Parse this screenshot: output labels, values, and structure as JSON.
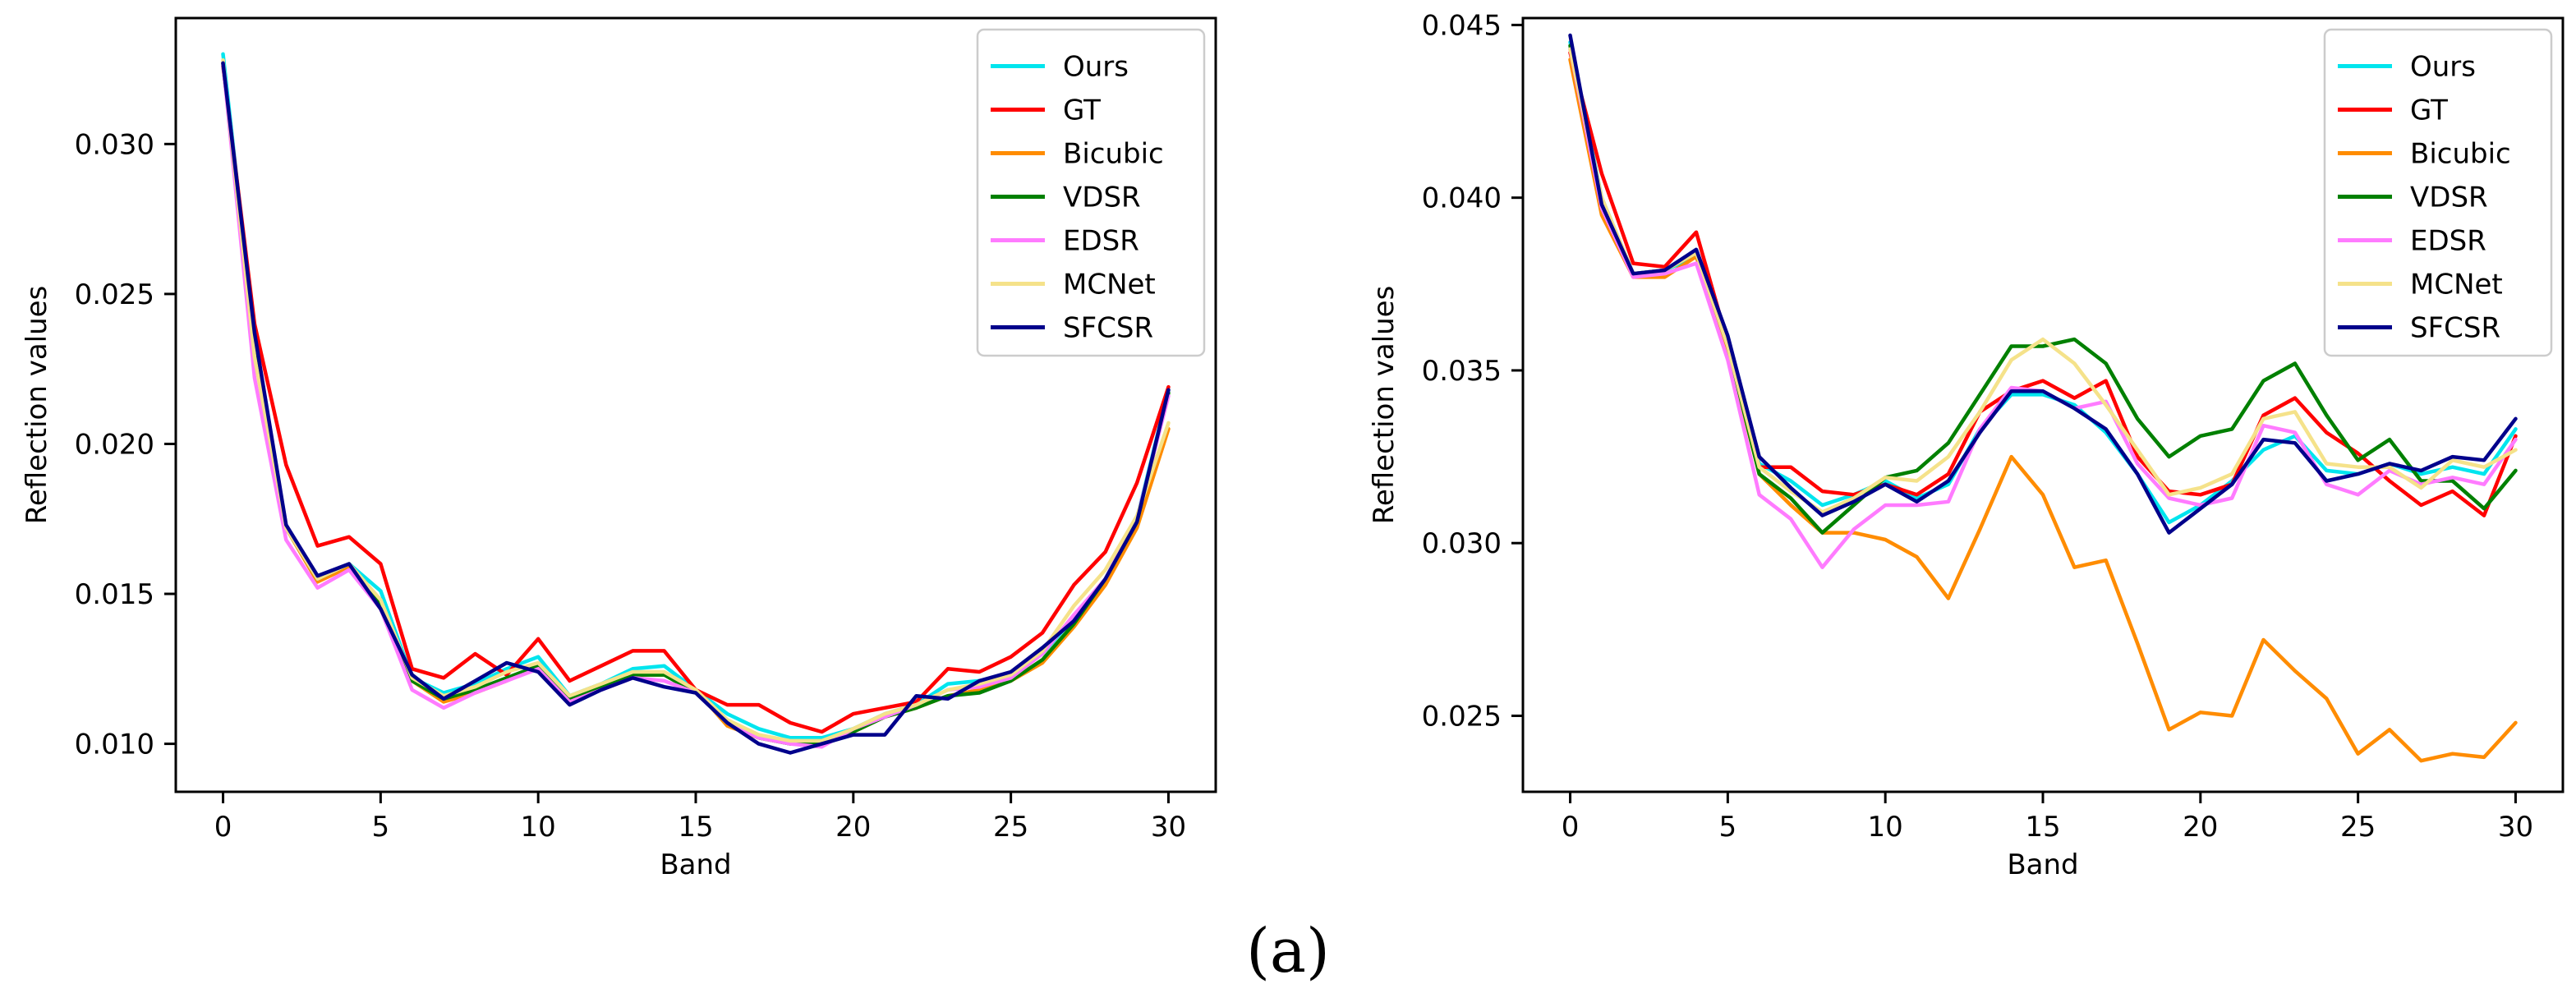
{
  "caption": "(a)",
  "chart_data": [
    {
      "type": "line",
      "title": "",
      "xlabel": "Band",
      "ylabel": "Reflection values",
      "xlim": [
        -1.5,
        31.5
      ],
      "ylim": [
        0.0084,
        0.0342
      ],
      "xticks": [
        0,
        5,
        10,
        15,
        20,
        25,
        30
      ],
      "yticks": [
        0.01,
        0.015,
        0.02,
        0.025,
        0.03
      ],
      "ytick_labels": [
        "0.010",
        "0.015",
        "0.020",
        "0.025",
        "0.030"
      ],
      "legend_position": "top-right",
      "x": [
        0,
        1,
        2,
        3,
        4,
        5,
        6,
        7,
        8,
        9,
        10,
        11,
        12,
        13,
        14,
        15,
        16,
        17,
        18,
        19,
        20,
        21,
        22,
        23,
        24,
        25,
        26,
        27,
        28,
        29,
        30
      ],
      "series": [
        {
          "name": "Ours",
          "color": "#00e5ee",
          "values": [
            0.033,
            0.0235,
            0.0172,
            0.0155,
            0.016,
            0.0151,
            0.0122,
            0.0117,
            0.012,
            0.0125,
            0.0129,
            0.0116,
            0.012,
            0.0125,
            0.0126,
            0.0118,
            0.011,
            0.0105,
            0.0102,
            0.0102,
            0.0105,
            0.011,
            0.0113,
            0.012,
            0.0121,
            0.0123,
            0.013,
            0.0142,
            0.0155,
            0.0175,
            0.0218
          ]
        },
        {
          "name": "GT",
          "color": "#ff0000",
          "values": [
            0.0326,
            0.024,
            0.0193,
            0.0166,
            0.0169,
            0.016,
            0.0125,
            0.0122,
            0.013,
            0.0123,
            0.0135,
            0.0121,
            0.0126,
            0.0131,
            0.0131,
            0.0118,
            0.0113,
            0.0113,
            0.0107,
            0.0104,
            0.011,
            0.0112,
            0.0114,
            0.0125,
            0.0124,
            0.0129,
            0.0137,
            0.0153,
            0.0164,
            0.0187,
            0.0219
          ]
        },
        {
          "name": "Bicubic",
          "color": "#ff8c00",
          "values": [
            0.0327,
            0.023,
            0.0172,
            0.0154,
            0.0159,
            0.0145,
            0.0121,
            0.0114,
            0.0117,
            0.0121,
            0.0126,
            0.0115,
            0.0119,
            0.0123,
            0.0123,
            0.0118,
            0.0106,
            0.0102,
            0.01,
            0.01,
            0.0104,
            0.0109,
            0.0112,
            0.0116,
            0.0118,
            0.0121,
            0.0127,
            0.0139,
            0.0153,
            0.0172,
            0.0205
          ]
        },
        {
          "name": "VDSR",
          "color": "#008000",
          "values": [
            0.0327,
            0.0231,
            0.0172,
            0.0155,
            0.016,
            0.0146,
            0.0121,
            0.0115,
            0.0118,
            0.0122,
            0.0126,
            0.0115,
            0.0119,
            0.0123,
            0.0123,
            0.0117,
            0.0107,
            0.0102,
            0.01,
            0.01,
            0.0104,
            0.0109,
            0.0112,
            0.0116,
            0.0117,
            0.0121,
            0.0128,
            0.014,
            0.0155,
            0.0174,
            0.0217
          ]
        },
        {
          "name": "EDSR",
          "color": "#ff7bff",
          "values": [
            0.0327,
            0.0222,
            0.0168,
            0.0152,
            0.0158,
            0.0145,
            0.0118,
            0.0112,
            0.0117,
            0.0121,
            0.0125,
            0.0114,
            0.0118,
            0.0122,
            0.0121,
            0.0117,
            0.0107,
            0.0102,
            0.01,
            0.0099,
            0.0105,
            0.0109,
            0.0113,
            0.0118,
            0.0119,
            0.0122,
            0.013,
            0.0143,
            0.0155,
            0.0175,
            0.0216
          ]
        },
        {
          "name": "MCNet",
          "color": "#f5e28a",
          "values": [
            0.0328,
            0.0229,
            0.0172,
            0.0155,
            0.016,
            0.0148,
            0.0122,
            0.0116,
            0.0119,
            0.0124,
            0.0127,
            0.0116,
            0.012,
            0.0124,
            0.0124,
            0.0118,
            0.0108,
            0.0103,
            0.0101,
            0.0101,
            0.0105,
            0.011,
            0.0113,
            0.0118,
            0.012,
            0.0123,
            0.0131,
            0.0146,
            0.0158,
            0.0176,
            0.0207
          ]
        },
        {
          "name": "SFCSR",
          "color": "#00008b",
          "values": [
            0.0327,
            0.0237,
            0.0173,
            0.0156,
            0.016,
            0.0145,
            0.0123,
            0.0115,
            0.0121,
            0.0127,
            0.0124,
            0.0113,
            0.0118,
            0.0122,
            0.0119,
            0.0117,
            0.0107,
            0.01,
            0.0097,
            0.01,
            0.0103,
            0.0103,
            0.0116,
            0.0115,
            0.0121,
            0.0124,
            0.0132,
            0.0141,
            0.0155,
            0.0174,
            0.0218
          ]
        }
      ]
    },
    {
      "type": "line",
      "title": "",
      "xlabel": "Band",
      "ylabel": "Reflection values",
      "xlim": [
        -1.5,
        31.5
      ],
      "ylim": [
        0.0228,
        0.0452
      ],
      "xticks": [
        0,
        5,
        10,
        15,
        20,
        25,
        30
      ],
      "yticks": [
        0.025,
        0.03,
        0.035,
        0.04,
        0.045
      ],
      "ytick_labels": [
        "0.025",
        "0.030",
        "0.035",
        "0.040",
        "0.045"
      ],
      "legend_position": "top-right",
      "x": [
        0,
        1,
        2,
        3,
        4,
        5,
        6,
        7,
        8,
        9,
        10,
        11,
        12,
        13,
        14,
        15,
        16,
        17,
        18,
        19,
        20,
        21,
        22,
        23,
        24,
        25,
        26,
        27,
        28,
        29,
        30
      ],
      "series": [
        {
          "name": "Ours",
          "color": "#00e5ee",
          "values": [
            0.0445,
            0.04,
            0.0378,
            0.0379,
            0.0383,
            0.0358,
            0.0323,
            0.0318,
            0.0311,
            0.0314,
            0.0318,
            0.0313,
            0.0317,
            0.0333,
            0.0343,
            0.0343,
            0.034,
            0.0332,
            0.032,
            0.0306,
            0.0311,
            0.0318,
            0.0327,
            0.0331,
            0.0321,
            0.032,
            0.0323,
            0.032,
            0.0322,
            0.032,
            0.0333
          ]
        },
        {
          "name": "GT",
          "color": "#ff0000",
          "values": [
            0.0442,
            0.0407,
            0.0381,
            0.038,
            0.039,
            0.0358,
            0.0322,
            0.0322,
            0.0315,
            0.0314,
            0.0317,
            0.0314,
            0.032,
            0.0338,
            0.0344,
            0.0347,
            0.0342,
            0.0347,
            0.0325,
            0.0315,
            0.0314,
            0.0317,
            0.0337,
            0.0342,
            0.0332,
            0.0326,
            0.0318,
            0.0311,
            0.0315,
            0.0308,
            0.0331
          ]
        },
        {
          "name": "Bicubic",
          "color": "#ff8c00",
          "values": [
            0.044,
            0.0395,
            0.0377,
            0.0377,
            0.0383,
            0.0356,
            0.032,
            0.0311,
            0.0303,
            0.0303,
            0.0301,
            0.0296,
            0.0284,
            0.0304,
            0.0325,
            0.0314,
            0.0293,
            0.0295,
            0.0271,
            0.0246,
            0.0251,
            0.025,
            0.0272,
            0.0263,
            0.0255,
            0.0239,
            0.0246,
            0.0237,
            0.0239,
            0.0238,
            0.0248
          ]
        },
        {
          "name": "VDSR",
          "color": "#008000",
          "values": [
            0.0444,
            0.0398,
            0.0378,
            0.0379,
            0.0384,
            0.0357,
            0.032,
            0.0313,
            0.0303,
            0.0311,
            0.0319,
            0.0321,
            0.0329,
            0.0343,
            0.0357,
            0.0357,
            0.0359,
            0.0352,
            0.0336,
            0.0325,
            0.0331,
            0.0333,
            0.0347,
            0.0352,
            0.0337,
            0.0324,
            0.033,
            0.0318,
            0.0318,
            0.031,
            0.0321
          ]
        },
        {
          "name": "EDSR",
          "color": "#ff7bff",
          "values": [
            0.0443,
            0.0397,
            0.0377,
            0.0378,
            0.0381,
            0.0353,
            0.0314,
            0.0307,
            0.0293,
            0.0304,
            0.0311,
            0.0311,
            0.0312,
            0.0333,
            0.0345,
            0.0344,
            0.0339,
            0.0341,
            0.0323,
            0.0313,
            0.0311,
            0.0313,
            0.0334,
            0.0332,
            0.0317,
            0.0314,
            0.0321,
            0.0317,
            0.0319,
            0.0317,
            0.033
          ]
        },
        {
          "name": "MCNet",
          "color": "#f5e28a",
          "values": [
            0.0443,
            0.04,
            0.0378,
            0.0379,
            0.0384,
            0.0357,
            0.0322,
            0.0315,
            0.0309,
            0.0313,
            0.0319,
            0.0318,
            0.0325,
            0.0338,
            0.0353,
            0.0359,
            0.0352,
            0.034,
            0.0327,
            0.0314,
            0.0316,
            0.032,
            0.0336,
            0.0338,
            0.0323,
            0.0322,
            0.0322,
            0.0316,
            0.0324,
            0.0322,
            0.0327
          ]
        },
        {
          "name": "SFCSR",
          "color": "#00008b",
          "values": [
            0.0447,
            0.0398,
            0.0378,
            0.0379,
            0.0385,
            0.036,
            0.0325,
            0.0316,
            0.0308,
            0.0312,
            0.0317,
            0.0312,
            0.0318,
            0.0332,
            0.0344,
            0.0344,
            0.0339,
            0.0333,
            0.032,
            0.0303,
            0.031,
            0.0317,
            0.033,
            0.0329,
            0.0318,
            0.032,
            0.0323,
            0.0321,
            0.0325,
            0.0324,
            0.0336
          ]
        }
      ]
    }
  ]
}
